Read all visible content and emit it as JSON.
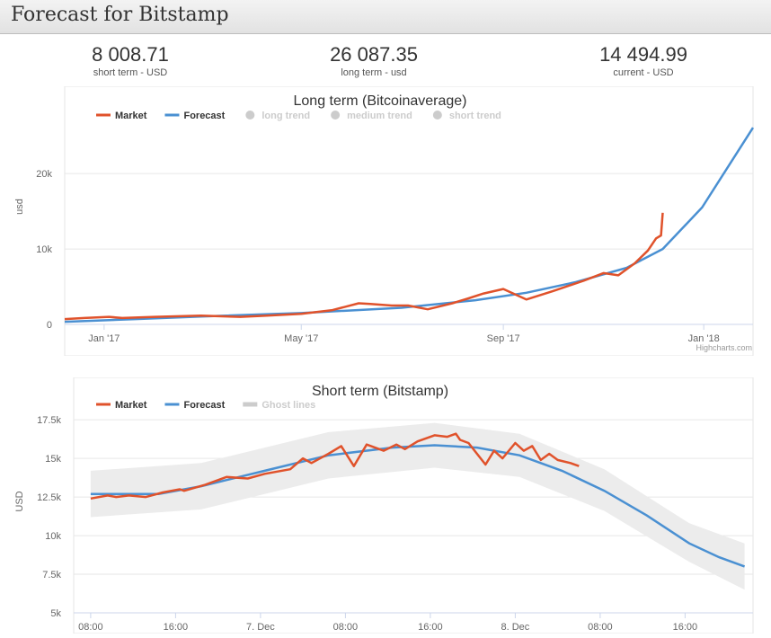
{
  "header": {
    "title": "Forecast for Bitstamp"
  },
  "stats": [
    {
      "value": "8 008.71",
      "label": "short term - USD"
    },
    {
      "value": "26 087.35",
      "label": "long term - usd"
    },
    {
      "value": "14 494.99",
      "label": "current - USD"
    }
  ],
  "colors": {
    "market": "#e0522b",
    "forecast": "#4a90d2",
    "disabled": "#cccccc",
    "band": "#ececec"
  },
  "chart_data": [
    {
      "type": "line",
      "title": "Long term (Bitcoinaverage)",
      "xlabel": "",
      "ylabel": "usd",
      "credit": "Highcharts.com",
      "x_ticks": [
        "Jan '17",
        "May '17",
        "Sep '17",
        "Jan '18"
      ],
      "y_ticks": [
        "0",
        "10k",
        "20k"
      ],
      "ylim": [
        0,
        28000
      ],
      "legend": [
        {
          "name": "Market",
          "enabled": true
        },
        {
          "name": "Forecast",
          "enabled": true
        },
        {
          "name": "long trend",
          "enabled": false
        },
        {
          "name": "medium trend",
          "enabled": false
        },
        {
          "name": "short trend",
          "enabled": false
        }
      ],
      "legend_position": "top-left",
      "grid": true,
      "series": [
        {
          "name": "Market",
          "x": [
            "2016-12-08",
            "2016-12-20",
            "2017-01-04",
            "2017-01-12",
            "2017-02-01",
            "2017-03-01",
            "2017-03-25",
            "2017-04-10",
            "2017-05-01",
            "2017-05-20",
            "2017-06-05",
            "2017-06-12",
            "2017-06-25",
            "2017-07-05",
            "2017-07-17",
            "2017-08-01",
            "2017-08-10",
            "2017-08-20",
            "2017-09-01",
            "2017-09-15",
            "2017-10-01",
            "2017-10-20",
            "2017-11-01",
            "2017-11-10",
            "2017-11-20",
            "2017-11-28",
            "2017-12-03",
            "2017-12-06",
            "2017-12-07"
          ],
          "y": [
            700,
            850,
            1000,
            850,
            1000,
            1150,
            1000,
            1150,
            1400,
            1900,
            2800,
            2700,
            2500,
            2500,
            2000,
            2800,
            3400,
            4100,
            4700,
            3300,
            4400,
            5800,
            6800,
            6500,
            8100,
            9800,
            11400,
            11800,
            14800
          ]
        },
        {
          "name": "Forecast",
          "x": [
            "2016-12-08",
            "2017-01-20",
            "2017-03-01",
            "2017-05-01",
            "2017-07-01",
            "2017-08-15",
            "2017-09-15",
            "2017-10-15",
            "2017-11-15",
            "2017-12-07",
            "2017-12-31",
            "2018-01-31"
          ],
          "y": [
            350,
            700,
            1050,
            1500,
            2200,
            3200,
            4200,
            5600,
            7500,
            10000,
            15500,
            26087
          ]
        }
      ]
    },
    {
      "type": "line",
      "title": "Short term (Bitstamp)",
      "xlabel": "",
      "ylabel": "USD",
      "x_ticks": [
        "08:00",
        "16:00",
        "7. Dec",
        "08:00",
        "16:00",
        "8. Dec",
        "08:00",
        "16:00"
      ],
      "y_ticks": [
        "5k",
        "7.5k",
        "10k",
        "12.5k",
        "15k",
        "17.5k"
      ],
      "ylim": [
        5000,
        18500
      ],
      "legend": [
        {
          "name": "Market",
          "enabled": true
        },
        {
          "name": "Forecast",
          "enabled": true
        },
        {
          "name": "Ghost lines",
          "enabled": false
        }
      ],
      "legend_position": "top-left",
      "grid": true,
      "series": [
        {
          "name": "Market",
          "x": [
            4,
            8,
            10,
            13,
            17,
            21,
            25,
            26,
            31,
            36,
            41,
            45,
            51,
            54,
            56,
            60,
            63,
            66,
            69,
            73,
            76,
            78,
            81,
            85,
            88,
            90,
            91,
            93,
            97,
            99,
            101,
            104,
            106,
            108,
            110,
            112,
            114,
            117,
            119
          ],
          "y": [
            12400,
            12600,
            12500,
            12600,
            12500,
            12800,
            13000,
            12900,
            13300,
            13800,
            13700,
            14000,
            14300,
            15000,
            14700,
            15300,
            15800,
            14500,
            15900,
            15500,
            15900,
            15600,
            16100,
            16500,
            16400,
            16600,
            16200,
            16000,
            14600,
            15500,
            15000,
            16000,
            15500,
            15800,
            14900,
            15300,
            14900,
            14700,
            14500
          ]
        },
        {
          "name": "Forecast",
          "x": [
            4,
            20,
            30,
            45,
            60,
            75,
            85,
            95,
            105,
            115,
            125,
            135,
            145,
            152,
            158
          ],
          "y": [
            12700,
            12700,
            13200,
            14200,
            15200,
            15700,
            15850,
            15700,
            15200,
            14200,
            12900,
            11300,
            9500,
            8600,
            8000
          ]
        }
      ],
      "band": {
        "name": "Ghost lines",
        "x": [
          4,
          30,
          60,
          85,
          105,
          125,
          145,
          158
        ],
        "low": [
          11200,
          11700,
          13700,
          14400,
          13800,
          11600,
          8300,
          6500
        ],
        "high": [
          14200,
          14700,
          16700,
          17300,
          16600,
          14300,
          10800,
          9500
        ]
      }
    }
  ]
}
